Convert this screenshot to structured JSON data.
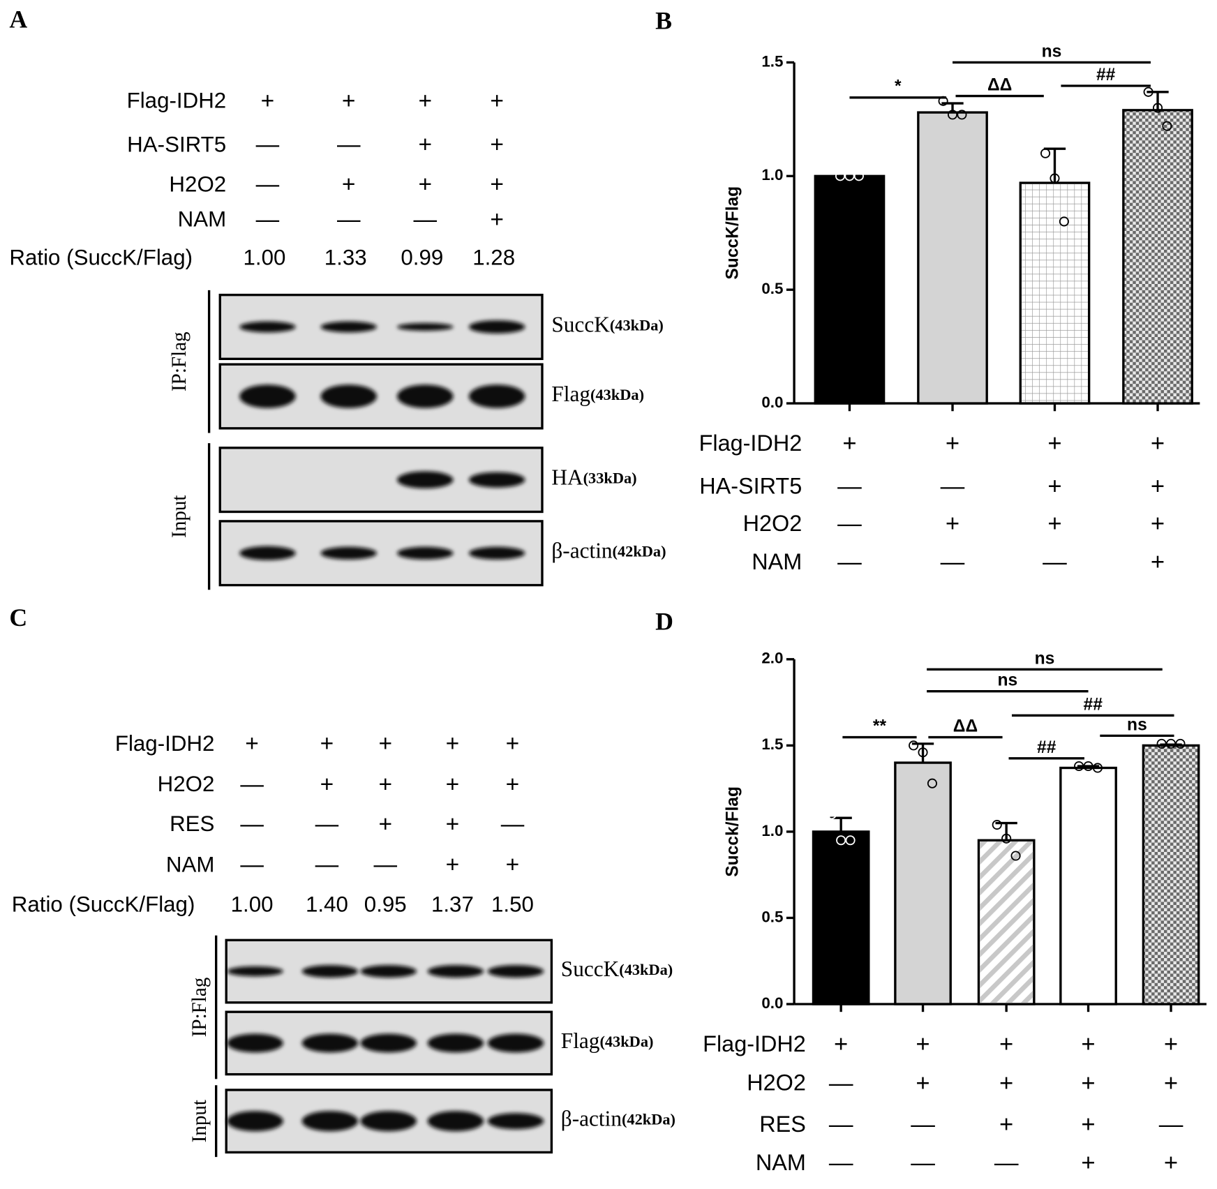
{
  "panels": {
    "A": {
      "label": "A",
      "conditions": [
        {
          "name": "Flag-IDH2",
          "marks": [
            "+",
            "+",
            "+",
            "+"
          ]
        },
        {
          "name": "HA-SIRT5",
          "marks": [
            "—",
            "—",
            "+",
            "+"
          ]
        },
        {
          "name": "H2O2",
          "marks": [
            "—",
            "+",
            "+",
            "+"
          ]
        },
        {
          "name": "NAM",
          "marks": [
            "—",
            "—",
            "—",
            "+"
          ]
        }
      ],
      "ratio_label": "Ratio (SuccK/Flag)",
      "ratios": [
        "1.00",
        "1.33",
        "0.99",
        "1.28"
      ],
      "groups": [
        {
          "name": "IP:Flag",
          "blots": [
            {
              "protein": "SuccK",
              "size": "(43kDa)"
            },
            {
              "protein": "Flag",
              "size": "(43kDa)"
            }
          ]
        },
        {
          "name": "Input",
          "blots": [
            {
              "protein": "HA",
              "size": "(33kDa)"
            },
            {
              "protein": "β-actin",
              "size": "(42kDa)"
            }
          ]
        }
      ]
    },
    "C": {
      "label": "C",
      "conditions": [
        {
          "name": "Flag-IDH2",
          "marks": [
            "+",
            "+",
            "+",
            "+",
            "+"
          ]
        },
        {
          "name": "H2O2",
          "marks": [
            "—",
            "+",
            "+",
            "+",
            "+"
          ]
        },
        {
          "name": "RES",
          "marks": [
            "—",
            "—",
            "+",
            "+",
            "—"
          ]
        },
        {
          "name": "NAM",
          "marks": [
            "—",
            "—",
            "—",
            "+",
            "+"
          ]
        }
      ],
      "ratio_label": "Ratio (SuccK/Flag)",
      "ratios": [
        "1.00",
        "1.40",
        "0.95",
        "1.37",
        "1.50"
      ],
      "groups": [
        {
          "name": "IP:Flag",
          "blots": [
            {
              "protein": "SuccK",
              "size": "(43kDa)"
            },
            {
              "protein": "Flag",
              "size": "(43kDa)"
            }
          ]
        },
        {
          "name": "Input",
          "blots": [
            {
              "protein": "β-actin",
              "size": "(42kDa)"
            }
          ]
        }
      ]
    }
  },
  "chart_data": [
    {
      "type": "bar",
      "panel_label": "B",
      "ylabel": "SuccK/Flag",
      "ylim": [
        0,
        1.5
      ],
      "yticks": [
        {
          "value": 0,
          "label": "0.0"
        },
        0.5,
        {
          "value": 1,
          "label": "1.0"
        },
        1.5
      ],
      "values": [
        1.0,
        1.28,
        0.97,
        1.29
      ],
      "errors": [
        0,
        0.04,
        0.15,
        0.08
      ],
      "points": [
        [
          1.0,
          1.0,
          1.0
        ],
        [
          1.33,
          1.27,
          1.27
        ],
        [
          1.1,
          0.99,
          0.8
        ],
        [
          1.37,
          1.3,
          1.22
        ]
      ],
      "colors": [
        "#000000",
        "#d4d4d4",
        "#ffffff",
        "#6a6a6a"
      ],
      "annotations": [
        "*",
        "ΔΔ",
        "##",
        "ns"
      ],
      "conditions": [
        {
          "name": "Flag-IDH2",
          "marks": [
            "+",
            "+",
            "+",
            "+"
          ]
        },
        {
          "name": "HA-SIRT5",
          "marks": [
            "—",
            "—",
            "+",
            "+"
          ]
        },
        {
          "name": "H2O2",
          "marks": [
            "—",
            "+",
            "+",
            "+"
          ]
        },
        {
          "name": "NAM",
          "marks": [
            "—",
            "—",
            "—",
            "+"
          ]
        }
      ]
    },
    {
      "type": "bar",
      "panel_label": "D",
      "ylabel": "Succk/Flag",
      "ylim": [
        0,
        2.0
      ],
      "yticks": [
        {
          "value": 0,
          "label": "0.0"
        },
        0.5,
        {
          "value": 1,
          "label": "1.0"
        },
        1.5,
        {
          "value": 2,
          "label": "2.0"
        }
      ],
      "values": [
        1.0,
        1.4,
        0.95,
        1.37,
        1.5
      ],
      "errors": [
        0.08,
        0.11,
        0.1,
        0.01,
        0.005
      ],
      "points": [
        [
          1.1,
          0.95,
          0.95
        ],
        [
          1.5,
          1.46,
          1.28
        ],
        [
          1.04,
          0.96,
          0.86
        ],
        [
          1.38,
          1.38,
          1.37
        ],
        [
          1.51,
          1.51,
          1.51
        ]
      ],
      "colors": [
        "#000000",
        "#d4d4d4",
        "#ffffff",
        "#ffffff",
        "#6a6a6a"
      ],
      "annotations": [
        "**",
        "ΔΔ",
        "##",
        "ns",
        "##",
        "ns",
        "ns"
      ],
      "conditions": [
        {
          "name": "Flag-IDH2",
          "marks": [
            "+",
            "+",
            "+",
            "+",
            "+"
          ]
        },
        {
          "name": "H2O2",
          "marks": [
            "—",
            "+",
            "+",
            "+",
            "+"
          ]
        },
        {
          "name": "RES",
          "marks": [
            "—",
            "—",
            "+",
            "+",
            "—"
          ]
        },
        {
          "name": "NAM",
          "marks": [
            "—",
            "—",
            "—",
            "+",
            "+"
          ]
        }
      ]
    }
  ]
}
